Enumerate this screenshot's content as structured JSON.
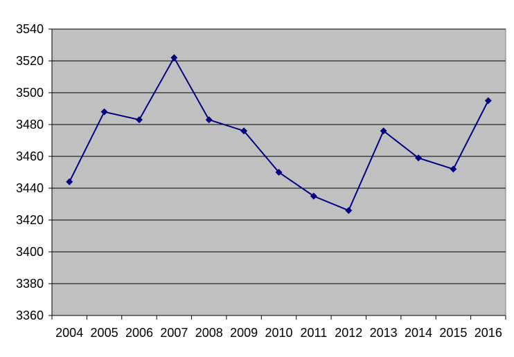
{
  "chart_data": {
    "type": "line",
    "title": "",
    "xlabel": "",
    "ylabel": "",
    "categories": [
      "2004",
      "2005",
      "2006",
      "2007",
      "2008",
      "2009",
      "2010",
      "2011",
      "2012",
      "2013",
      "2014",
      "2015",
      "2016"
    ],
    "series": [
      {
        "values": [
          3444,
          3488,
          3483,
          3522,
          3483,
          3476,
          3450,
          3435,
          3426,
          3476,
          3459,
          3452,
          3495
        ]
      }
    ],
    "ylim": [
      3360,
      3540
    ],
    "yticks": [
      "3360",
      "3380",
      "3400",
      "3420",
      "3440",
      "3460",
      "3480",
      "3500",
      "3520",
      "3540"
    ],
    "grid": true,
    "legend": "none",
    "colors": {
      "plot_background": "#c0c0c0",
      "line": "#000080",
      "marker": "#000080",
      "gridline": "#000000"
    }
  }
}
